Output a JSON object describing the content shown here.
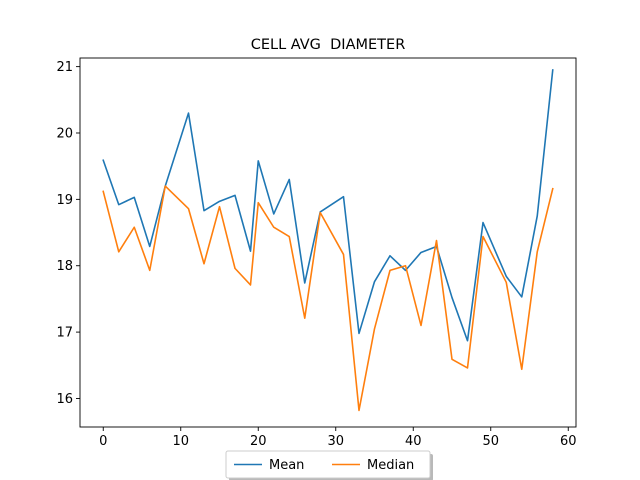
{
  "chart_data": {
    "type": "line",
    "title": "CELL AVG  DIAMETER",
    "xlabel": "",
    "ylabel": "",
    "xlim": [
      -3,
      61
    ],
    "ylim": [
      15.57,
      21.13
    ],
    "xticks": [
      0,
      10,
      20,
      30,
      40,
      50,
      60
    ],
    "yticks": [
      16,
      17,
      18,
      19,
      20,
      21
    ],
    "grid": false,
    "legend": {
      "placement": "bottom-center",
      "columns": 2
    },
    "x": [
      0,
      2,
      4,
      6,
      8,
      11,
      13,
      15,
      17,
      19,
      20,
      22,
      24,
      26,
      28,
      31,
      33,
      35,
      37,
      39,
      41,
      43,
      45,
      47,
      49,
      52,
      54,
      56,
      58
    ],
    "series": [
      {
        "name": "Mean",
        "color": "#1f77b4",
        "values": [
          19.59,
          18.92,
          19.03,
          18.29,
          19.2,
          20.3,
          18.83,
          18.97,
          19.06,
          18.22,
          19.58,
          18.78,
          19.3,
          17.74,
          18.81,
          19.04,
          16.98,
          17.76,
          18.15,
          17.93,
          18.2,
          18.29,
          17.52,
          16.87,
          18.65,
          17.84,
          17.53,
          18.75,
          20.95
        ]
      },
      {
        "name": "Median",
        "color": "#ff7f0e",
        "values": [
          19.12,
          18.21,
          18.58,
          17.93,
          19.2,
          18.86,
          18.03,
          18.89,
          17.96,
          17.71,
          18.95,
          18.58,
          18.44,
          17.21,
          18.8,
          18.17,
          15.82,
          17.05,
          17.93,
          18.0,
          17.1,
          18.38,
          16.59,
          16.46,
          18.44,
          17.75,
          16.44,
          18.21,
          19.16
        ]
      }
    ]
  }
}
